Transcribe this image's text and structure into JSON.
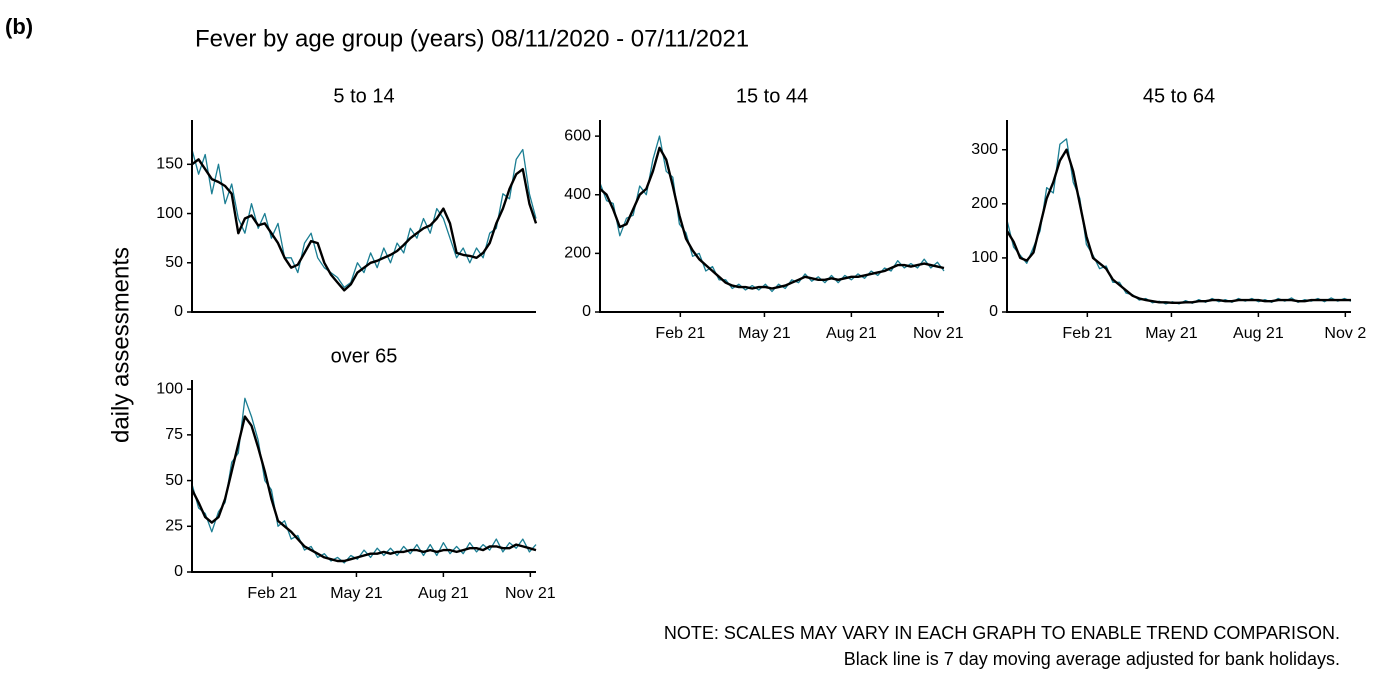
{
  "label": "(b)",
  "title": "Fever by age group (years) 08/11/2020 - 07/11/2021",
  "ylabel": "daily assessments",
  "notes": [
    "NOTE: SCALES MAY VARY IN EACH GRAPH TO ENABLE TREND COMPARISON.",
    "Black line is 7 day moving average adjusted for bank holidays."
  ],
  "chart_data": [
    {
      "type": "line",
      "title": "5 to 14",
      "x": [
        0,
        7,
        14,
        21,
        28,
        35,
        42,
        49,
        56,
        63,
        70,
        77,
        84,
        91,
        98,
        105,
        112,
        119,
        126,
        133,
        140,
        147,
        154,
        161,
        168,
        175,
        182,
        189,
        196,
        203,
        210,
        217,
        224,
        231,
        238,
        245,
        252,
        259,
        266,
        273,
        280,
        287,
        294,
        301,
        308,
        315,
        322,
        329,
        336,
        343,
        350,
        357,
        364
      ],
      "xlim": [
        0,
        364
      ],
      "ylim": [
        0,
        195
      ],
      "yticks": [
        0,
        50,
        100,
        150
      ],
      "series": [
        {
          "color": "#1b7e93",
          "values": [
            165,
            140,
            160,
            120,
            150,
            110,
            130,
            95,
            80,
            110,
            85,
            100,
            75,
            90,
            55,
            55,
            40,
            70,
            80,
            55,
            45,
            40,
            35,
            25,
            30,
            50,
            40,
            60,
            45,
            65,
            50,
            70,
            60,
            85,
            75,
            95,
            80,
            105,
            95,
            75,
            55,
            65,
            50,
            65,
            55,
            80,
            85,
            120,
            115,
            155,
            165,
            120,
            95
          ]
        },
        {
          "color": "#000000",
          "values": [
            150,
            155,
            145,
            135,
            132,
            128,
            120,
            80,
            95,
            98,
            88,
            90,
            80,
            70,
            55,
            45,
            48,
            60,
            72,
            70,
            50,
            38,
            30,
            22,
            28,
            40,
            45,
            50,
            52,
            55,
            58,
            62,
            68,
            75,
            80,
            85,
            88,
            95,
            105,
            90,
            60,
            58,
            57,
            55,
            60,
            70,
            90,
            105,
            125,
            140,
            145,
            110,
            90
          ]
        }
      ]
    },
    {
      "type": "line",
      "title": "15 to 44",
      "x": [
        0,
        7,
        14,
        21,
        28,
        35,
        42,
        49,
        56,
        63,
        70,
        77,
        84,
        91,
        98,
        105,
        112,
        119,
        126,
        133,
        140,
        147,
        154,
        161,
        168,
        175,
        182,
        189,
        196,
        203,
        210,
        217,
        224,
        231,
        238,
        245,
        252,
        259,
        266,
        273,
        280,
        287,
        294,
        301,
        308,
        315,
        322,
        329,
        336,
        343,
        350,
        357,
        364
      ],
      "xlim": [
        0,
        364
      ],
      "ylim": [
        0,
        655
      ],
      "yticks": [
        0,
        200,
        400,
        600
      ],
      "xticks": [
        {
          "value": 85,
          "label": "Feb 21"
        },
        {
          "value": 174,
          "label": "May 21"
        },
        {
          "value": 266,
          "label": "Aug 21"
        },
        {
          "value": 358,
          "label": "Nov 21"
        }
      ],
      "series": [
        {
          "color": "#1b7e93",
          "values": [
            440,
            380,
            370,
            260,
            320,
            330,
            430,
            400,
            520,
            600,
            480,
            460,
            300,
            270,
            190,
            200,
            140,
            155,
            110,
            110,
            80,
            95,
            75,
            90,
            75,
            95,
            70,
            95,
            80,
            110,
            100,
            130,
            105,
            120,
            100,
            125,
            100,
            125,
            110,
            130,
            115,
            140,
            125,
            150,
            140,
            175,
            150,
            165,
            150,
            180,
            150,
            170,
            140
          ]
        },
        {
          "color": "#000000",
          "values": [
            420,
            400,
            350,
            290,
            300,
            350,
            400,
            420,
            480,
            560,
            520,
            430,
            330,
            250,
            210,
            180,
            160,
            140,
            120,
            100,
            90,
            85,
            85,
            80,
            85,
            85,
            80,
            85,
            90,
            100,
            110,
            120,
            115,
            110,
            110,
            115,
            110,
            115,
            120,
            120,
            125,
            130,
            135,
            140,
            150,
            160,
            160,
            155,
            160,
            165,
            160,
            155,
            150
          ]
        }
      ]
    },
    {
      "type": "line",
      "title": "45 to 64",
      "x": [
        0,
        7,
        14,
        21,
        28,
        35,
        42,
        49,
        56,
        63,
        70,
        77,
        84,
        91,
        98,
        105,
        112,
        119,
        126,
        133,
        140,
        147,
        154,
        161,
        168,
        175,
        182,
        189,
        196,
        203,
        210,
        217,
        224,
        231,
        238,
        245,
        252,
        259,
        266,
        273,
        280,
        287,
        294,
        301,
        308,
        315,
        322,
        329,
        336,
        343,
        350,
        357,
        364
      ],
      "xlim": [
        0,
        364
      ],
      "ylim": [
        0,
        355
      ],
      "yticks": [
        0,
        100,
        200,
        300
      ],
      "xticks": [
        {
          "value": 85,
          "label": "Feb 21"
        },
        {
          "value": 174,
          "label": "May 21"
        },
        {
          "value": 266,
          "label": "Aug 21"
        },
        {
          "value": 358,
          "label": "Nov 2"
        }
      ],
      "series": [
        {
          "color": "#1b7e93",
          "values": [
            170,
            120,
            105,
            90,
            120,
            150,
            230,
            220,
            310,
            320,
            240,
            210,
            125,
            105,
            80,
            85,
            55,
            55,
            35,
            32,
            22,
            25,
            17,
            20,
            15,
            19,
            15,
            21,
            16,
            23,
            18,
            25,
            19,
            23,
            18,
            25,
            20,
            25,
            19,
            23,
            18,
            25,
            20,
            26,
            18,
            23,
            20,
            25,
            19,
            26,
            20,
            25,
            20
          ]
        },
        {
          "color": "#000000",
          "values": [
            150,
            130,
            100,
            95,
            110,
            160,
            210,
            240,
            280,
            300,
            260,
            200,
            140,
            100,
            90,
            80,
            60,
            50,
            40,
            30,
            25,
            22,
            20,
            18,
            18,
            17,
            17,
            18,
            18,
            20,
            20,
            22,
            22,
            20,
            20,
            22,
            22,
            22,
            22,
            20,
            20,
            22,
            22,
            22,
            20,
            20,
            22,
            22,
            22,
            22,
            22,
            22,
            22
          ]
        }
      ]
    },
    {
      "type": "line",
      "title": "over 65",
      "x": [
        0,
        7,
        14,
        21,
        28,
        35,
        42,
        49,
        56,
        63,
        70,
        77,
        84,
        91,
        98,
        105,
        112,
        119,
        126,
        133,
        140,
        147,
        154,
        161,
        168,
        175,
        182,
        189,
        196,
        203,
        210,
        217,
        224,
        231,
        238,
        245,
        252,
        259,
        266,
        273,
        280,
        287,
        294,
        301,
        308,
        315,
        322,
        329,
        336,
        343,
        350,
        357,
        364
      ],
      "xlim": [
        0,
        364
      ],
      "ylim": [
        0,
        105
      ],
      "yticks": [
        0,
        25,
        50,
        75,
        100
      ],
      "xticks": [
        {
          "value": 85,
          "label": "Feb 21"
        },
        {
          "value": 174,
          "label": "May 21"
        },
        {
          "value": 266,
          "label": "Aug 21"
        },
        {
          "value": 358,
          "label": "Nov 21"
        }
      ],
      "series": [
        {
          "color": "#1b7e93",
          "values": [
            48,
            35,
            32,
            22,
            33,
            38,
            60,
            65,
            95,
            85,
            72,
            50,
            45,
            25,
            28,
            18,
            20,
            12,
            14,
            8,
            10,
            6,
            8,
            5,
            9,
            7,
            12,
            8,
            13,
            9,
            13,
            9,
            14,
            10,
            15,
            9,
            15,
            9,
            16,
            10,
            14,
            10,
            16,
            11,
            15,
            12,
            18,
            11,
            16,
            13,
            18,
            11,
            15
          ]
        },
        {
          "color": "#000000",
          "values": [
            45,
            38,
            30,
            27,
            30,
            40,
            55,
            70,
            85,
            80,
            68,
            55,
            40,
            28,
            25,
            22,
            18,
            14,
            12,
            10,
            8,
            7,
            6,
            6,
            7,
            8,
            9,
            10,
            10,
            11,
            10,
            11,
            11,
            12,
            12,
            11,
            12,
            11,
            12,
            12,
            11,
            12,
            13,
            13,
            12,
            14,
            14,
            13,
            13,
            15,
            14,
            13,
            12
          ]
        }
      ]
    }
  ]
}
